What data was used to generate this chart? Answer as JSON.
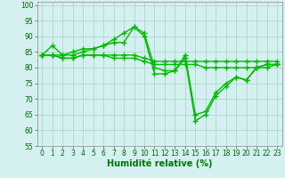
{
  "line1": {
    "x": [
      0,
      1,
      2,
      3,
      4,
      5,
      6,
      7,
      8,
      9,
      10,
      11,
      12,
      13,
      14,
      15,
      16,
      17,
      18,
      19,
      20,
      21,
      22,
      23
    ],
    "y": [
      84,
      87,
      84,
      84,
      85,
      86,
      87,
      88,
      88,
      93,
      90,
      78,
      78,
      79,
      84,
      65,
      66,
      72,
      75,
      77,
      76,
      80,
      81,
      81
    ]
  },
  "line2": {
    "x": [
      0,
      1,
      2,
      3,
      4,
      5,
      6,
      7,
      8,
      9,
      10,
      11,
      12,
      13,
      14,
      15,
      16,
      17,
      18,
      19,
      20,
      21,
      22,
      23
    ],
    "y": [
      84,
      84,
      84,
      85,
      86,
      86,
      87,
      89,
      91,
      93,
      91,
      80,
      79,
      79,
      83,
      63,
      65,
      71,
      74,
      77,
      76,
      80,
      81,
      81
    ]
  },
  "line3": {
    "x": [
      0,
      1,
      2,
      3,
      4,
      5,
      6,
      7,
      8,
      9,
      10,
      11,
      12,
      13,
      14,
      15,
      16,
      17,
      18,
      19,
      20,
      21,
      22,
      23
    ],
    "y": [
      84,
      84,
      83,
      83,
      84,
      84,
      84,
      84,
      84,
      84,
      83,
      82,
      82,
      82,
      82,
      82,
      82,
      82,
      82,
      82,
      82,
      82,
      82,
      82
    ]
  },
  "line4": {
    "x": [
      0,
      1,
      2,
      3,
      4,
      5,
      6,
      7,
      8,
      9,
      10,
      11,
      12,
      13,
      14,
      15,
      16,
      17,
      18,
      19,
      20,
      21,
      22,
      23
    ],
    "y": [
      84,
      84,
      83,
      83,
      84,
      84,
      84,
      83,
      83,
      83,
      82,
      81,
      81,
      81,
      81,
      81,
      80,
      80,
      80,
      80,
      80,
      80,
      80,
      81
    ]
  },
  "line_color": "#00bb00",
  "marker": "+",
  "markersize": 4,
  "markeredgewidth": 1.0,
  "linewidth": 1.0,
  "xlabel": "Humidité relative (%)",
  "xlabel_fontsize": 7,
  "xlabel_color": "#007700",
  "xlim": [
    -0.5,
    23.5
  ],
  "ylim": [
    55,
    101
  ],
  "yticks": [
    55,
    60,
    65,
    70,
    75,
    80,
    85,
    90,
    95,
    100
  ],
  "xticks": [
    0,
    1,
    2,
    3,
    4,
    5,
    6,
    7,
    8,
    9,
    10,
    11,
    12,
    13,
    14,
    15,
    16,
    17,
    18,
    19,
    20,
    21,
    22,
    23
  ],
  "tick_fontsize": 5.5,
  "background_color": "#d4f0f0",
  "grid_color": "#b0d8c8",
  "grid_linewidth": 0.6
}
